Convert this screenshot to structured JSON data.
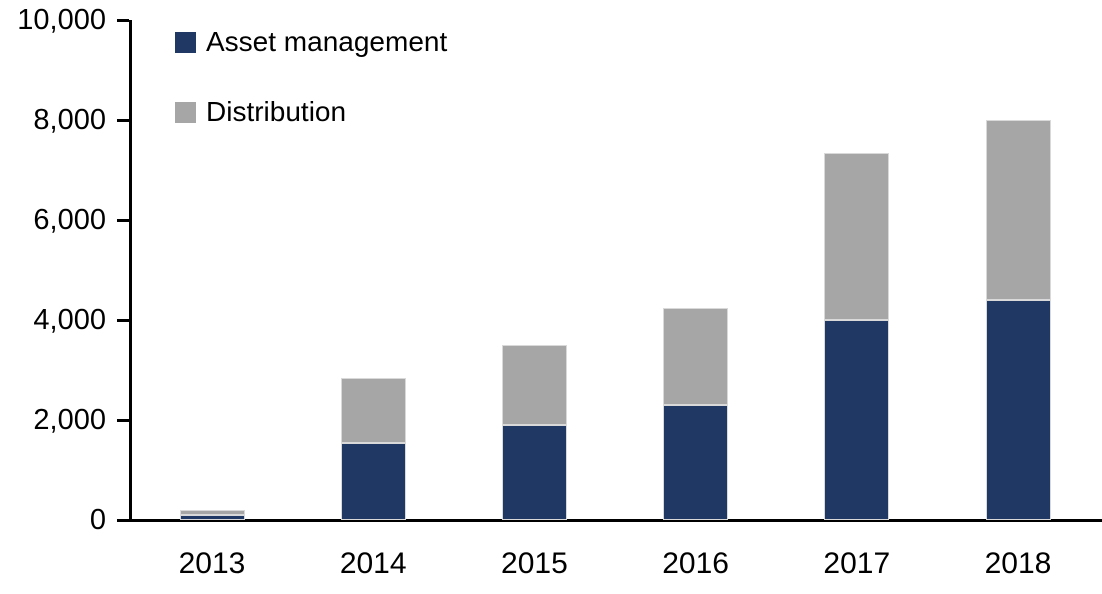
{
  "chart": {
    "background_color": "#ffffff",
    "axis_color": "#000000",
    "text_color": "#000000",
    "segment_border_color": "#d9d9d9"
  },
  "chart_data": {
    "type": "bar",
    "stacked": true,
    "title": "",
    "xlabel": "",
    "ylabel": "",
    "categories": [
      "2013",
      "2014",
      "2015",
      "2016",
      "2017",
      "2018"
    ],
    "series": [
      {
        "name": "Asset management",
        "color": "#1f3864",
        "values": [
          100,
          1550,
          1900,
          2300,
          4000,
          4400
        ]
      },
      {
        "name": "Distribution",
        "color": "#a6a6a6",
        "values": [
          100,
          1300,
          1600,
          1950,
          3350,
          3600
        ]
      }
    ],
    "totals": [
      200,
      2850,
      3500,
      4250,
      7350,
      8000
    ],
    "ylim": [
      0,
      10000
    ],
    "yticks": [
      0,
      2000,
      4000,
      6000,
      8000,
      10000
    ],
    "ytick_labels": [
      "0",
      "2,000",
      "4,000",
      "6,000",
      "8,000",
      "10,000"
    ],
    "grid": false,
    "legend_position": "top-left-inside"
  }
}
